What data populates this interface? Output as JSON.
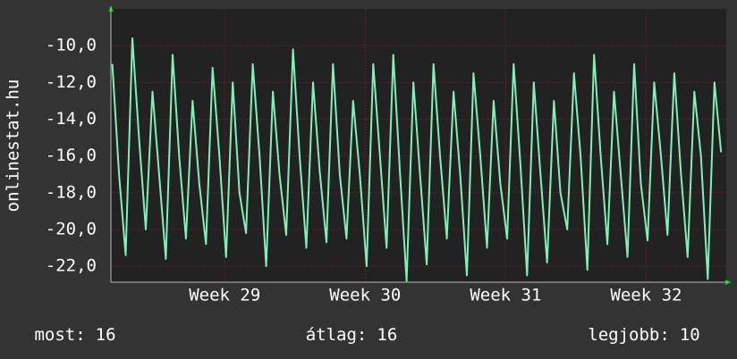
{
  "chart_data": {
    "type": "line",
    "ylabel": "onlinestat.hu",
    "x": [
      28.2,
      28.248,
      28.295,
      28.343,
      28.39,
      28.438,
      28.486,
      28.533,
      28.581,
      28.629,
      28.676,
      28.724,
      28.771,
      28.819,
      28.867,
      28.914,
      28.962,
      29.01,
      29.057,
      29.105,
      29.152,
      29.2,
      29.248,
      29.295,
      29.343,
      29.39,
      29.438,
      29.486,
      29.533,
      29.581,
      29.629,
      29.676,
      29.724,
      29.771,
      29.819,
      29.867,
      29.914,
      29.962,
      30.01,
      30.057,
      30.105,
      30.152,
      30.2,
      30.248,
      30.295,
      30.343,
      30.39,
      30.438,
      30.486,
      30.533,
      30.581,
      30.629,
      30.676,
      30.724,
      30.771,
      30.819,
      30.867,
      30.914,
      30.962,
      31.01,
      31.057,
      31.105,
      31.152,
      31.2,
      31.248,
      31.295,
      31.343,
      31.39,
      31.438,
      31.486,
      31.533,
      31.581,
      31.629,
      31.676,
      31.724,
      31.771,
      31.819,
      31.867,
      31.914,
      31.962,
      32.01,
      32.057,
      32.105,
      32.152,
      32.2,
      32.248,
      32.295,
      32.343,
      32.39,
      32.438,
      32.486,
      32.533
    ],
    "series": [
      {
        "color": "#80f0b8",
        "values": [
          -11,
          -17,
          -21.4,
          -9.6,
          -15,
          -20,
          -12.5,
          -17,
          -21.6,
          -10.5,
          -16,
          -20.5,
          -13,
          -17.5,
          -20.8,
          -11.2,
          -16,
          -21.5,
          -12,
          -18,
          -20.2,
          -11,
          -16,
          -22,
          -12.5,
          -17,
          -20.3,
          -10.2,
          -16,
          -21,
          -12,
          -16.8,
          -20.7,
          -11,
          -17,
          -20.5,
          -13,
          -17,
          -22,
          -11,
          -16,
          -21,
          -10.5,
          -17,
          -22.8,
          -12,
          -17,
          -21.9,
          -11,
          -16,
          -20.5,
          -12.5,
          -17,
          -22.5,
          -11.5,
          -16,
          -21,
          -13,
          -17.5,
          -20.5,
          -11,
          -16.5,
          -22.5,
          -12,
          -17,
          -21.8,
          -13,
          -18,
          -20,
          -11.5,
          -16,
          -22.2,
          -10.5,
          -16,
          -20.8,
          -12.5,
          -17,
          -21.5,
          -11,
          -17.5,
          -20.6,
          -12,
          -16,
          -20.3,
          -11.5,
          -17,
          -21.5,
          -12.5,
          -16,
          -22.7,
          -12,
          -15.8
        ]
      }
    ],
    "xlim": [
      28.19,
      32.57
    ],
    "xticks": [
      {
        "value": 29,
        "label": "Week 29"
      },
      {
        "value": 30,
        "label": "Week 30"
      },
      {
        "value": 31,
        "label": "Week 31"
      },
      {
        "value": 32,
        "label": "Week 32"
      }
    ],
    "ylim": [
      -22.87,
      -8.0
    ],
    "yticks": [
      {
        "value": -10,
        "label": "-10,0"
      },
      {
        "value": -12,
        "label": "-12,0"
      },
      {
        "value": -14,
        "label": "-14,0"
      },
      {
        "value": -16,
        "label": "-16,0"
      },
      {
        "value": -18,
        "label": "-18,0"
      },
      {
        "value": -20,
        "label": "-20,0"
      },
      {
        "value": -22,
        "label": "-22,0"
      }
    ],
    "grid": true,
    "footer": [
      {
        "label": "most:",
        "value": 16
      },
      {
        "label": "átlag:",
        "value": 16
      },
      {
        "label": "legjobb:",
        "value": 10
      }
    ]
  }
}
